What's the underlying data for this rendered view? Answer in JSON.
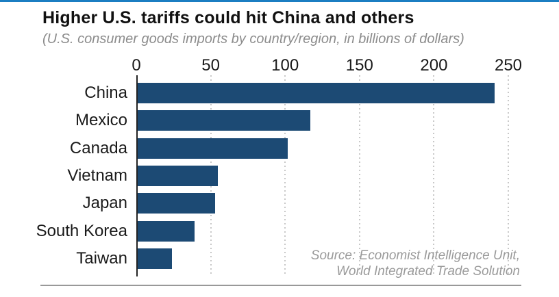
{
  "page": {
    "accent_color": "#1b7ec2",
    "background_color": "#ffffff"
  },
  "header": {
    "title": "Higher U.S. tariffs could hit China and others",
    "subtitle": "(U.S. consumer goods imports by country/region, in billions of dollars)"
  },
  "chart_data": {
    "type": "bar",
    "orientation": "horizontal",
    "title": "Higher U.S. tariffs could hit China and others",
    "subtitle": "(U.S. consumer goods imports by country/region, in billions of dollars)",
    "categories": [
      "China",
      "Mexico",
      "Canada",
      "Vietnam",
      "Japan",
      "South Korea",
      "Taiwan"
    ],
    "values": [
      240,
      116,
      101,
      54,
      52,
      38,
      23
    ],
    "xlabel": "",
    "ylabel": "",
    "xlim": [
      0,
      250
    ],
    "x_ticks": [
      0,
      50,
      100,
      150,
      200,
      250
    ],
    "grid": "dotted vertical gridlines at each x tick",
    "legend_position": "none",
    "bar_color": "#1c4a74",
    "axis_line_color": "#222222",
    "gridline_color": "#c8c8c8"
  },
  "source": {
    "line1": "Source: Economist Intelligence Unit,",
    "line2": "World Integrated Trade Solution"
  }
}
